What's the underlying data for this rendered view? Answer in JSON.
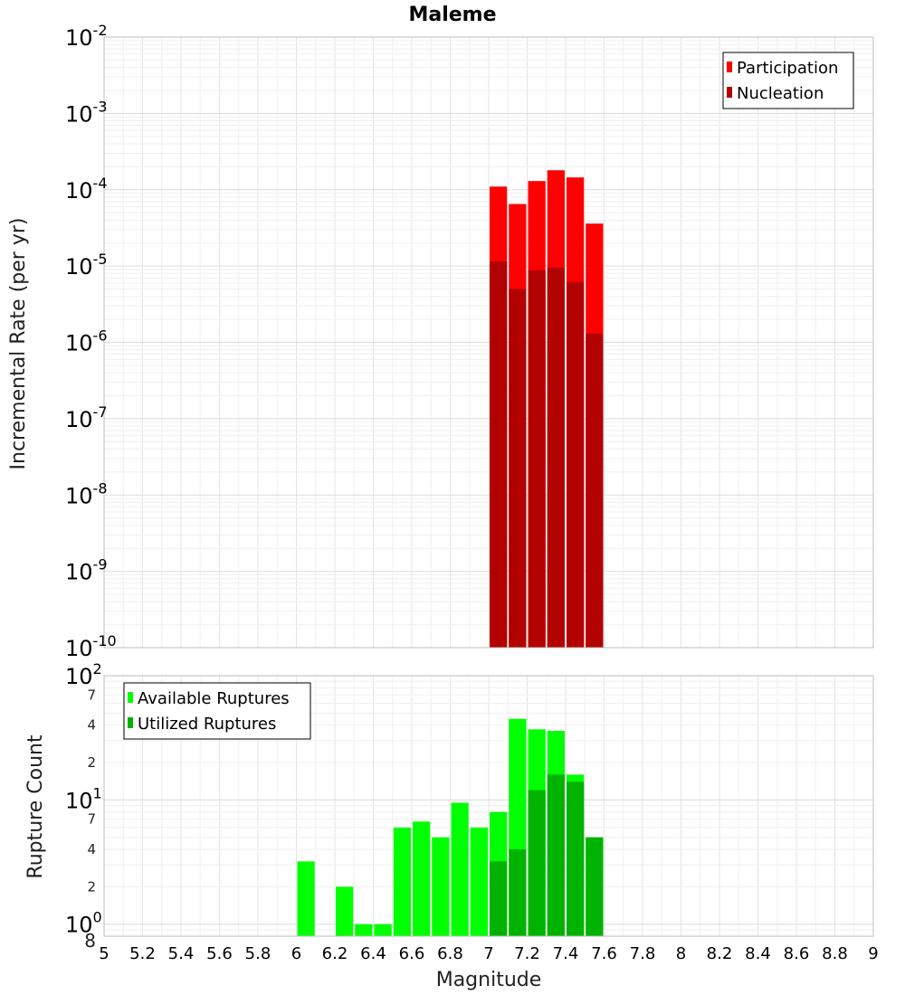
{
  "chart_data": [
    {
      "type": "bar",
      "title": "Maleme",
      "ylabel": "Incremental Rate (per yr)",
      "xlabel": "",
      "xlim": [
        5,
        9
      ],
      "ylim": [
        1e-10,
        0.01
      ],
      "yscale": "log",
      "grid": true,
      "legend_position": "top-right",
      "bin_width": 0.1,
      "x": [
        7.05,
        7.15,
        7.25,
        7.35,
        7.45,
        7.55
      ],
      "series": [
        {
          "name": "Participation",
          "color": "#ff0000",
          "values": [
            0.00011,
            6.5e-05,
            0.00013,
            0.00018,
            0.000145,
            3.6e-05
          ]
        },
        {
          "name": "Nucleation",
          "color": "#b30000",
          "values": [
            1.15e-05,
            5e-06,
            8.8e-06,
            9.5e-06,
            6.2e-06,
            1.3e-06
          ]
        }
      ],
      "ytick_exponents": [
        -10,
        -9,
        -8,
        -7,
        -6,
        -5,
        -4,
        -3,
        -2
      ]
    },
    {
      "type": "bar",
      "ylabel": "Rupture Count",
      "xlabel": "Magnitude",
      "xlim": [
        5,
        9
      ],
      "ylim": [
        0.8,
        100
      ],
      "yscale": "log",
      "grid": true,
      "legend_position": "top-left",
      "bin_width": 0.1,
      "x": [
        6.05,
        6.15,
        6.25,
        6.35,
        6.45,
        6.55,
        6.65,
        6.75,
        6.85,
        6.95,
        7.05,
        7.15,
        7.25,
        7.35,
        7.45,
        7.55
      ],
      "series": [
        {
          "name": "Available Ruptures",
          "color": "#00ff00",
          "values": [
            3.2,
            0,
            2,
            1,
            1,
            6,
            6.7,
            5,
            9.5,
            6,
            8,
            45,
            37,
            36,
            16,
            5
          ]
        },
        {
          "name": "Utilized Ruptures",
          "color": "#00b300",
          "values": [
            0,
            0,
            0,
            0,
            0,
            0,
            0,
            0,
            0,
            0,
            3.2,
            4,
            12,
            16,
            14,
            5
          ]
        }
      ],
      "ytick_major_exponents": [
        0,
        1,
        2
      ],
      "ytick_minor_labels": [
        "2",
        "4",
        "7"
      ],
      "ytick_bottom_label": "8",
      "xticks": [
        "5",
        "5.2",
        "5.4",
        "5.6",
        "5.8",
        "6",
        "6.2",
        "6.4",
        "6.6",
        "6.8",
        "7",
        "7.2",
        "7.4",
        "7.6",
        "7.8",
        "8",
        "8.2",
        "8.4",
        "8.6",
        "8.8",
        "9"
      ]
    }
  ]
}
